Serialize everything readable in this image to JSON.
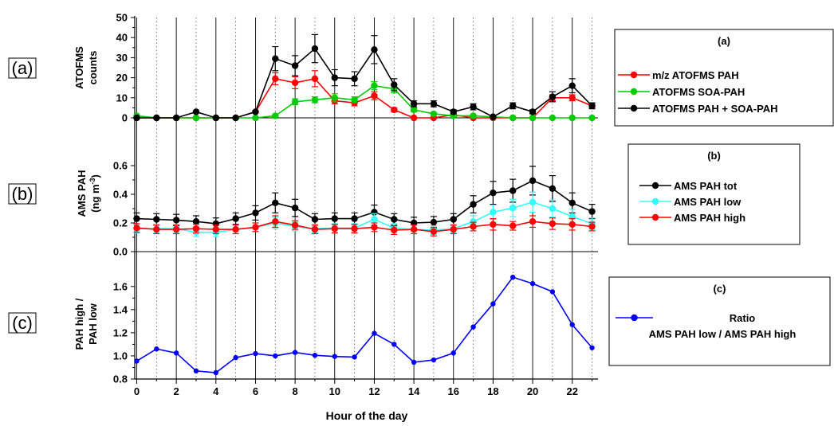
{
  "chart_data": [
    {
      "type": "line",
      "panel_label": "(a)",
      "ylabel": [
        "ATOFMS",
        "counts"
      ],
      "ylim": [
        0,
        50
      ],
      "yticks": [
        0,
        10,
        20,
        30,
        40,
        50
      ],
      "legend_title": "(a)",
      "x": [
        0,
        1,
        2,
        3,
        4,
        5,
        6,
        7,
        8,
        9,
        10,
        11,
        12,
        13,
        14,
        15,
        16,
        17,
        18,
        19,
        20,
        21,
        22,
        23
      ],
      "series": [
        {
          "name": "m/z ATOFMS PAH",
          "color": "#ff0000",
          "values": [
            0,
            0,
            0,
            0,
            0,
            0,
            3,
            19.5,
            17.5,
            19.5,
            8.5,
            7.5,
            11,
            4,
            0,
            0,
            1.5,
            0,
            0,
            0,
            0,
            10,
            10,
            6
          ],
          "errors": [
            0,
            0,
            0,
            0,
            0,
            0,
            0.5,
            3,
            3,
            4,
            1.5,
            1.5,
            2,
            1,
            0,
            0,
            0.5,
            0,
            0,
            0,
            0,
            1.5,
            1.5,
            1
          ]
        },
        {
          "name": "ATOFMS SOA-PAH",
          "color": "#00cc00",
          "values": [
            1,
            0,
            0,
            0,
            0,
            0,
            0,
            1,
            8,
            9,
            10,
            9,
            16,
            14.5,
            4,
            2,
            1,
            1,
            0.5,
            0,
            0,
            0,
            0,
            0
          ],
          "errors": [
            0,
            0,
            0,
            0,
            0,
            0,
            0,
            0.5,
            1.5,
            1.5,
            2,
            1.5,
            2,
            2,
            1,
            0.5,
            0.5,
            0.5,
            0,
            0,
            0,
            0,
            0,
            0
          ]
        },
        {
          "name": "ATOFMS PAH + SOA-PAH",
          "color": "#000000",
          "values": [
            0,
            0,
            0,
            3,
            0,
            0,
            3,
            29.5,
            26,
            34.5,
            20,
            19.5,
            34,
            16.5,
            7,
            7,
            3,
            5.5,
            0.5,
            6,
            3,
            10.5,
            16,
            6
          ],
          "errors": [
            0,
            0,
            0,
            0.5,
            0,
            0,
            0.5,
            6,
            5,
            7,
            4,
            3.5,
            7,
            3,
            1.5,
            1.5,
            1,
            1.5,
            0.5,
            1.5,
            1,
            2.5,
            3.5,
            1.5
          ]
        }
      ]
    },
    {
      "type": "line",
      "panel_label": "(b)",
      "ylabel": [
        "AMS PAH",
        "(ng m",
        "-3",
        ")"
      ],
      "ylim": [
        0,
        0.7
      ],
      "yticks": [
        0.0,
        0.2,
        0.4,
        0.6
      ],
      "ytick_labels": [
        "0.0",
        "0.2",
        "0.4",
        "0.6"
      ],
      "legend_title": "(b)",
      "x": [
        0,
        1,
        2,
        3,
        4,
        5,
        6,
        7,
        8,
        9,
        10,
        11,
        12,
        13,
        14,
        15,
        16,
        17,
        18,
        19,
        20,
        21,
        22,
        23
      ],
      "series": [
        {
          "name": "AMS PAH tot",
          "color": "#000000",
          "values": [
            0.23,
            0.225,
            0.22,
            0.21,
            0.195,
            0.23,
            0.27,
            0.34,
            0.305,
            0.225,
            0.23,
            0.23,
            0.275,
            0.225,
            0.2,
            0.205,
            0.225,
            0.33,
            0.41,
            0.425,
            0.495,
            0.44,
            0.34,
            0.28
          ],
          "errors": [
            0.04,
            0.04,
            0.04,
            0.04,
            0.04,
            0.04,
            0.05,
            0.07,
            0.06,
            0.04,
            0.04,
            0.04,
            0.05,
            0.04,
            0.04,
            0.04,
            0.04,
            0.06,
            0.08,
            0.08,
            0.1,
            0.09,
            0.07,
            0.05
          ]
        },
        {
          "name": "AMS PAH low",
          "color": "#33ffff",
          "values": [
            0.16,
            0.16,
            0.16,
            0.135,
            0.135,
            0.155,
            0.17,
            0.2,
            0.175,
            0.16,
            0.165,
            0.165,
            0.225,
            0.165,
            0.155,
            0.15,
            0.16,
            0.21,
            0.275,
            0.305,
            0.345,
            0.3,
            0.245,
            0.195
          ],
          "errors": [
            0.03,
            0.03,
            0.03,
            0.03,
            0.03,
            0.03,
            0.03,
            0.04,
            0.03,
            0.03,
            0.03,
            0.03,
            0.04,
            0.03,
            0.03,
            0.03,
            0.03,
            0.04,
            0.05,
            0.06,
            0.07,
            0.06,
            0.05,
            0.04
          ]
        },
        {
          "name": "AMS PAH high",
          "color": "#ff0000",
          "values": [
            0.165,
            0.155,
            0.155,
            0.16,
            0.155,
            0.155,
            0.17,
            0.21,
            0.185,
            0.155,
            0.16,
            0.16,
            0.17,
            0.15,
            0.155,
            0.14,
            0.155,
            0.175,
            0.19,
            0.18,
            0.21,
            0.195,
            0.19,
            0.175
          ],
          "errors": [
            0.03,
            0.03,
            0.03,
            0.03,
            0.03,
            0.03,
            0.03,
            0.04,
            0.03,
            0.03,
            0.03,
            0.03,
            0.03,
            0.03,
            0.03,
            0.03,
            0.03,
            0.03,
            0.04,
            0.03,
            0.04,
            0.04,
            0.04,
            0.03
          ]
        }
      ]
    },
    {
      "type": "line",
      "panel_label": "(c)",
      "ylabel": [
        "PAH high /",
        "PAH low"
      ],
      "ylim": [
        0.8,
        1.75
      ],
      "yticks": [
        0.8,
        1.0,
        1.2,
        1.4,
        1.6
      ],
      "ytick_labels": [
        "0.8",
        "1.0",
        "1.2",
        "1.4",
        "1.6"
      ],
      "legend_title": "(c)",
      "x": [
        0,
        1,
        2,
        3,
        4,
        5,
        6,
        7,
        8,
        9,
        10,
        11,
        12,
        13,
        14,
        15,
        16,
        17,
        18,
        19,
        20,
        21,
        22,
        23
      ],
      "series": [
        {
          "name": [
            "Ratio",
            "AMS PAH low / AMS PAH high"
          ],
          "color": "#0000ff",
          "values": [
            0.955,
            1.06,
            1.025,
            0.87,
            0.855,
            0.985,
            1.02,
            1.0,
            1.03,
            1.005,
            0.995,
            0.99,
            1.195,
            1.1,
            0.945,
            0.965,
            1.025,
            1.25,
            1.45,
            1.68,
            1.625,
            1.555,
            1.27,
            1.07
          ]
        }
      ]
    }
  ],
  "x_axis": {
    "label": "Hour of the day",
    "ticks": [
      0,
      2,
      4,
      6,
      8,
      10,
      12,
      14,
      16,
      18,
      20,
      22
    ],
    "range": [
      -0.1,
      23.3
    ]
  },
  "colors": {
    "grid_solid": "#000000",
    "grid_dotted": "#555555",
    "axis": "#000000"
  }
}
